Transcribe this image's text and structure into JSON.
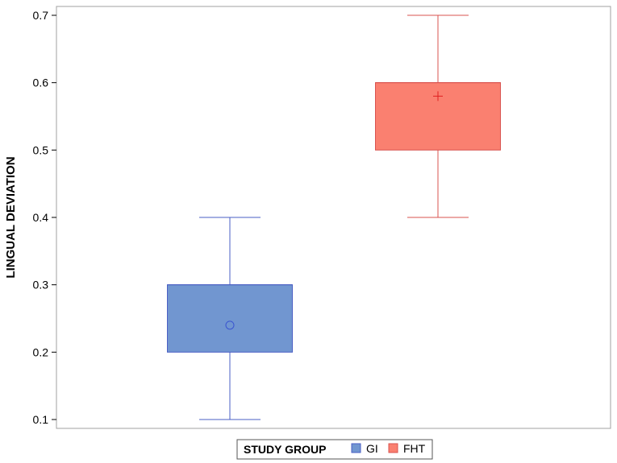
{
  "chart_data": {
    "type": "box",
    "title": "",
    "xlabel": "",
    "ylabel": "LINGUAL DEVIATION",
    "ylim": [
      0.1,
      0.7
    ],
    "yticks": [
      "0.1",
      "0.2",
      "0.3",
      "0.4",
      "0.5",
      "0.6",
      "0.7"
    ],
    "grid": false,
    "legend": {
      "title": "STUDY GROUP",
      "placement": "bottom",
      "entries": [
        "GI",
        "FHT"
      ]
    },
    "series": [
      {
        "name": "GI",
        "color": "#7196d0",
        "edge_color": "#4a5fc4",
        "min": 0.1,
        "q1": 0.2,
        "median": 0.3,
        "q3": 0.3,
        "max": 0.4,
        "mean": 0.24,
        "mean_marker": "circle"
      },
      {
        "name": "FHT",
        "color": "#fa8070",
        "edge_color": "#d9534f",
        "min": 0.4,
        "q1": 0.5,
        "median": 0.6,
        "q3": 0.6,
        "max": 0.7,
        "mean": 0.58,
        "mean_marker": "plus"
      }
    ]
  }
}
